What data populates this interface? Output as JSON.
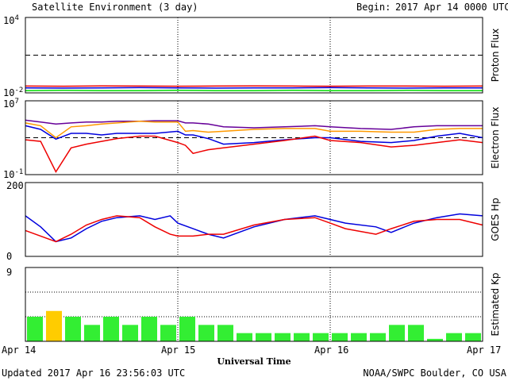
{
  "title": "Satellite Environment (3 day)",
  "begin_label": "Begin:",
  "begin_value": "2017 Apr 14 0000 UTC",
  "updated": "Updated 2017 Apr 16 23:56:03 UTC",
  "credit": "NOAA/SWPC Boulder, CO USA",
  "xaxis_title": "Universal Time",
  "x_ticks": [
    "Apr 14",
    "Apr 15",
    "Apr 16",
    "Apr 17"
  ],
  "colors": {
    "red": "#ee0000",
    "blue": "#0000dd",
    "green": "#00dd00",
    "orange": "#ff9900",
    "purple": "#660099",
    "bar_green": "#33ee33",
    "bar_yellow": "#ffcc00"
  },
  "chart_data": [
    {
      "type": "line",
      "ylabel": "Proton Flux",
      "scale": "log",
      "ylim": [
        0.01,
        10000
      ],
      "ytick_labels": [
        {
          "base": "10",
          "exp": "4"
        },
        {
          "base": "10",
          "exp": "-2"
        }
      ],
      "threshold": 10,
      "x": [
        0,
        0.25,
        0.5,
        0.75,
        1.0,
        1.25,
        1.5,
        1.75,
        2.0,
        2.25,
        2.5,
        2.75,
        3.0
      ],
      "series": [
        {
          "color": "red",
          "values": [
            0.035,
            0.034,
            0.036,
            0.035,
            0.034,
            0.035,
            0.036,
            0.035,
            0.034,
            0.035,
            0.035,
            0.034,
            0.035
          ]
        },
        {
          "color": "blue",
          "values": [
            0.025,
            0.024,
            0.025,
            0.026,
            0.025,
            0.024,
            0.025,
            0.025,
            0.026,
            0.025,
            0.024,
            0.025,
            0.025
          ]
        },
        {
          "color": "green",
          "values": [
            0.015,
            0.016,
            0.015,
            0.015,
            0.016,
            0.015,
            0.015,
            0.016,
            0.015,
            0.015,
            0.016,
            0.015,
            0.015
          ]
        }
      ]
    },
    {
      "type": "line",
      "ylabel": "Electron Flux",
      "scale": "log",
      "ylim": [
        0.1,
        10000000
      ],
      "ytick_labels": [
        {
          "base": "10",
          "exp": "7"
        },
        {
          "base": "10",
          "exp": "-1"
        }
      ],
      "threshold": 1000,
      "x": [
        0,
        0.1,
        0.2,
        0.3,
        0.4,
        0.5,
        0.6,
        0.75,
        0.85,
        1.0,
        1.05,
        1.1,
        1.2,
        1.3,
        1.5,
        1.7,
        1.9,
        2.0,
        2.2,
        2.4,
        2.55,
        2.7,
        2.85,
        3.0
      ],
      "series": [
        {
          "color": "purple",
          "values": [
            80000,
            50000,
            30000,
            40000,
            50000,
            50000,
            60000,
            60000,
            70000,
            70000,
            40000,
            40000,
            30000,
            15000,
            12000,
            15000,
            20000,
            15000,
            10000,
            8000,
            15000,
            20000,
            20000,
            20000
          ]
        },
        {
          "color": "orange",
          "values": [
            40000,
            20000,
            1000,
            15000,
            20000,
            30000,
            40000,
            60000,
            50000,
            50000,
            5000,
            6000,
            4000,
            5000,
            8000,
            10000,
            10000,
            5000,
            5000,
            4000,
            4000,
            8000,
            10000,
            10000
          ]
        },
        {
          "color": "blue",
          "values": [
            20000,
            8000,
            700,
            3000,
            3000,
            2000,
            3000,
            3000,
            3000,
            5000,
            2000,
            2000,
            800,
            200,
            300,
            600,
            1000,
            1000,
            400,
            300,
            500,
            1500,
            3000,
            1000
          ]
        },
        {
          "color": "red",
          "values": [
            600,
            400,
            0.2,
            80,
            200,
            400,
            800,
            1500,
            1500,
            300,
            150,
            20,
            50,
            80,
            200,
            500,
            1500,
            500,
            300,
            100,
            150,
            300,
            600,
            300
          ]
        }
      ]
    },
    {
      "type": "line",
      "ylabel": "GOES Hp",
      "scale": "linear",
      "ylim": [
        0,
        200
      ],
      "ytick_labels": [
        "200",
        "0"
      ],
      "x": [
        0,
        0.1,
        0.2,
        0.3,
        0.4,
        0.5,
        0.6,
        0.75,
        0.85,
        0.95,
        1.0,
        1.1,
        1.2,
        1.3,
        1.5,
        1.7,
        1.9,
        2.0,
        2.1,
        2.3,
        2.4,
        2.55,
        2.7,
        2.85,
        3.0
      ],
      "series": [
        {
          "color": "blue",
          "values": [
            110,
            80,
            40,
            50,
            75,
            95,
            105,
            110,
            100,
            110,
            90,
            75,
            60,
            50,
            80,
            100,
            110,
            100,
            90,
            80,
            65,
            90,
            105,
            115,
            110
          ]
        },
        {
          "color": "red",
          "values": [
            70,
            55,
            40,
            60,
            85,
            100,
            110,
            105,
            80,
            60,
            55,
            55,
            60,
            60,
            85,
            100,
            105,
            90,
            75,
            60,
            75,
            95,
            100,
            100,
            85
          ]
        }
      ]
    },
    {
      "type": "bar",
      "ylabel": "Estimated Kp",
      "ylim": [
        0,
        9
      ],
      "ytick_labels": [
        "9"
      ],
      "values": [
        3.0,
        3.7,
        3.0,
        2.0,
        3.0,
        2.0,
        3.0,
        2.0,
        3.0,
        2.0,
        2.0,
        1.0,
        1.0,
        1.0,
        1.0,
        1.0,
        1.0,
        1.0,
        1.0,
        2.0,
        2.0,
        0.3,
        1.0,
        1.0
      ],
      "colors": [
        "green",
        "yellow",
        "green",
        "green",
        "green",
        "green",
        "green",
        "green",
        "green",
        "green",
        "green",
        "green",
        "green",
        "green",
        "green",
        "green",
        "green",
        "green",
        "green",
        "green",
        "green",
        "green",
        "green",
        "green"
      ]
    }
  ]
}
